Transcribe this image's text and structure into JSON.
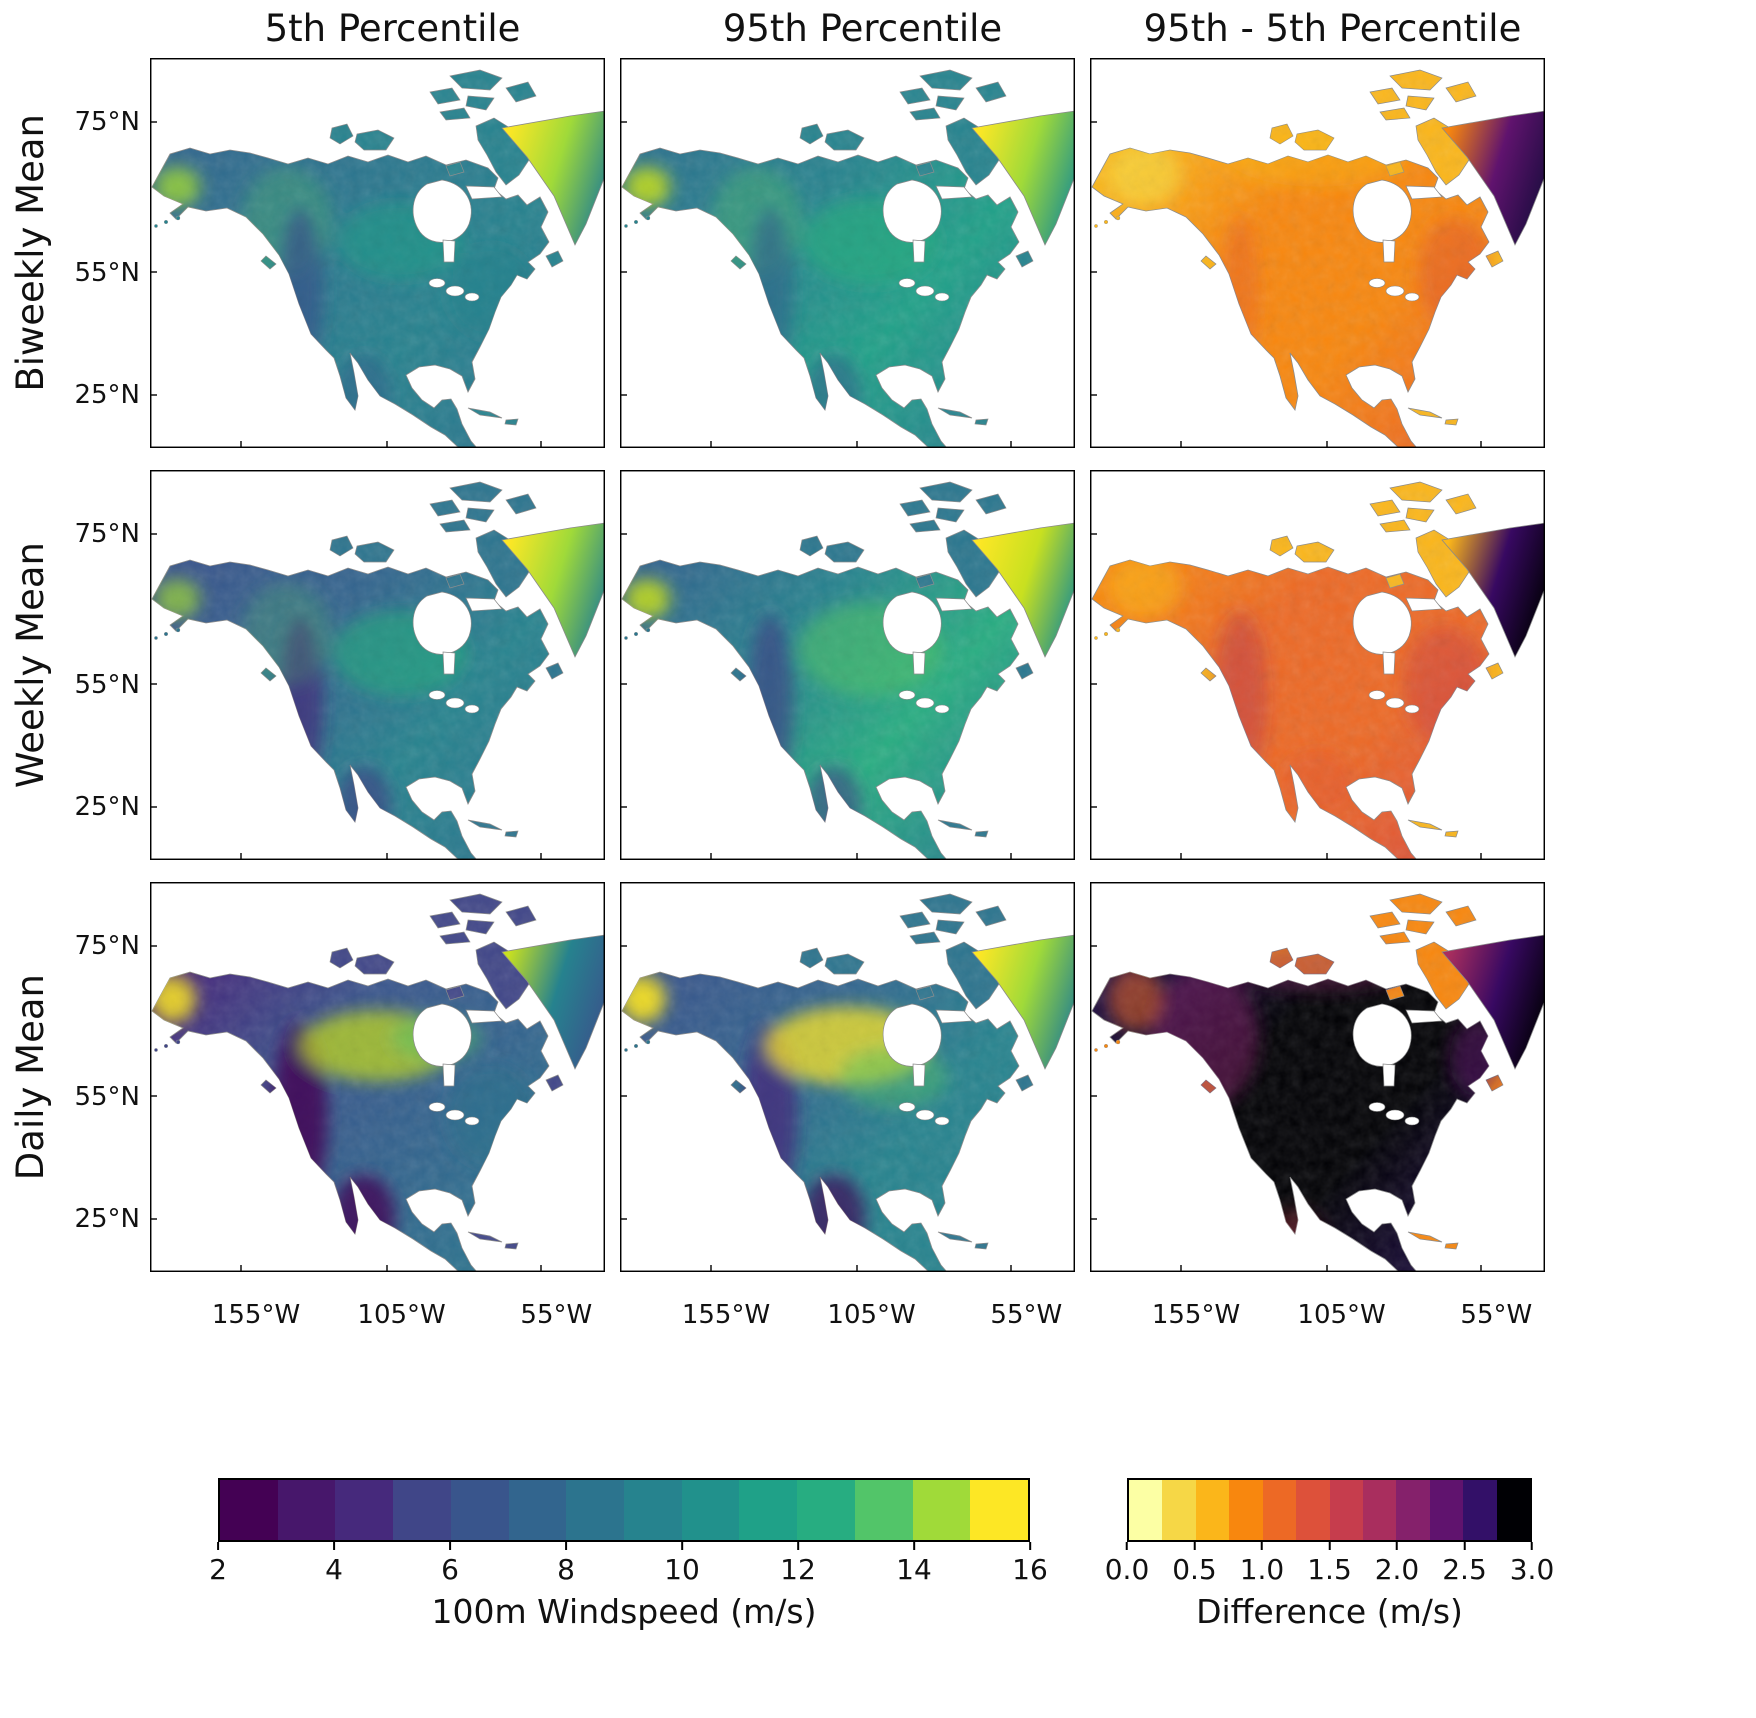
{
  "figure": {
    "col_headers": [
      "5th Percentile",
      "95th Percentile",
      "95th - 5th Percentile"
    ],
    "row_labels": [
      "Biweekly Mean",
      "Weekly Mean",
      "Daily Mean"
    ],
    "lat_ticks": [
      "75°N",
      "55°N",
      "25°N"
    ],
    "lon_ticks": [
      "155°W",
      "105°W",
      "55°W"
    ]
  },
  "colorbars": {
    "windspeed": {
      "label": "100m Windspeed (m/s)",
      "ticks": [
        "2",
        "4",
        "6",
        "8",
        "10",
        "12",
        "14",
        "16"
      ],
      "colors": [
        "#440154",
        "#47176b",
        "#46297c",
        "#404688",
        "#39558c",
        "#32658e",
        "#2c748e",
        "#26838e",
        "#21918c",
        "#1fa188",
        "#27ad81",
        "#52c569",
        "#a0da39",
        "#fde725"
      ]
    },
    "difference": {
      "label": "Difference (m/s)",
      "ticks": [
        "0.0",
        "0.5",
        "1.0",
        "1.5",
        "2.0",
        "2.5",
        "3.0"
      ],
      "colors": [
        "#fcffa4",
        "#f6d746",
        "#fbb61a",
        "#f8870e",
        "#ed6925",
        "#dd513a",
        "#c63d4d",
        "#a92e5e",
        "#85216b",
        "#60136e",
        "#331068",
        "#000004"
      ]
    }
  },
  "chart_data": {
    "type": "heatmap",
    "region": "North America",
    "panel_grid": {
      "columns": [
        "5th Percentile",
        "95th Percentile",
        "95th - 5th Percentile"
      ],
      "rows": [
        "Biweekly Mean",
        "Weekly Mean",
        "Daily Mean"
      ]
    },
    "x_axis": {
      "ticks": [
        "155°W",
        "105°W",
        "55°W"
      ]
    },
    "y_axis": {
      "ticks": [
        "75°N",
        "55°N",
        "25°N"
      ]
    },
    "colorbars": [
      {
        "label": "100m Windspeed (m/s)",
        "range": [
          2,
          16
        ],
        "tick_values": [
          2,
          4,
          6,
          8,
          10,
          12,
          14,
          16
        ],
        "palette": "viridis",
        "n_segments": 14
      },
      {
        "label": "Difference (m/s)",
        "range": [
          0.0,
          3.0
        ],
        "tick_values": [
          0.0,
          0.5,
          1.0,
          1.5,
          2.0,
          2.5,
          3.0
        ],
        "palette": "inferno_reversed",
        "n_segments": 12
      }
    ]
  },
  "render": {
    "panels": [
      {
        "id": "biweekly-5th",
        "stops": [
          "#31688e",
          "#2a768e",
          "#26828e",
          "#2a768e"
        ],
        "islands": "#26828e",
        "greenland": [
          "#fde725",
          "#a0da39",
          "#26828e"
        ],
        "accents": [
          [
            0.06,
            0.33,
            0.05,
            0.05,
            "#a0da39",
            0.8
          ],
          [
            0.3,
            0.42,
            0.1,
            0.14,
            "#52c569",
            0.3
          ],
          [
            0.33,
            0.6,
            0.05,
            0.22,
            "#39558c",
            0.7
          ],
          [
            0.55,
            0.47,
            0.14,
            0.1,
            "#1fa188",
            0.55
          ],
          [
            0.47,
            0.86,
            0.06,
            0.1,
            "#32658e",
            0.6
          ],
          [
            0.75,
            0.6,
            0.1,
            0.12,
            "#26838e",
            0.5
          ]
        ]
      },
      {
        "id": "biweekly-95th",
        "stops": [
          "#2c748e",
          "#26838e",
          "#1fa188",
          "#26838e"
        ],
        "islands": "#26838e",
        "greenland": [
          "#fde725",
          "#a0da39",
          "#21918c"
        ],
        "accents": [
          [
            0.06,
            0.33,
            0.05,
            0.05,
            "#c8e020",
            0.85
          ],
          [
            0.3,
            0.42,
            0.1,
            0.14,
            "#52c569",
            0.35
          ],
          [
            0.33,
            0.6,
            0.05,
            0.22,
            "#32658e",
            0.65
          ],
          [
            0.55,
            0.47,
            0.15,
            0.11,
            "#27ad81",
            0.7
          ],
          [
            0.47,
            0.86,
            0.06,
            0.1,
            "#32658e",
            0.6
          ]
        ]
      },
      {
        "id": "biweekly-diff",
        "stops": [
          "#fbb61a",
          "#f8870e",
          "#f8870e",
          "#ed6925"
        ],
        "islands": "#fbb61a",
        "greenland": [
          "#f8870e",
          "#60136e",
          "#1c0c3f"
        ],
        "accents": [
          [
            0.12,
            0.3,
            0.08,
            0.08,
            "#f6d746",
            0.7
          ],
          [
            0.5,
            0.25,
            0.2,
            0.08,
            "#fbb61a",
            0.5
          ],
          [
            0.8,
            0.55,
            0.08,
            0.14,
            "#dd513a",
            0.4
          ],
          [
            0.33,
            0.6,
            0.04,
            0.2,
            "#dd513a",
            0.3
          ]
        ]
      },
      {
        "id": "weekly-5th",
        "stops": [
          "#39558c",
          "#32658e",
          "#26838e",
          "#2a768e"
        ],
        "islands": "#2c748e",
        "greenland": [
          "#fde725",
          "#a0da39",
          "#26828e"
        ],
        "accents": [
          [
            0.06,
            0.33,
            0.05,
            0.05,
            "#a0da39",
            0.7
          ],
          [
            0.33,
            0.6,
            0.05,
            0.23,
            "#46297c",
            0.7
          ],
          [
            0.55,
            0.47,
            0.15,
            0.11,
            "#27ad81",
            0.6
          ],
          [
            0.47,
            0.86,
            0.06,
            0.1,
            "#404688",
            0.7
          ],
          [
            0.3,
            0.42,
            0.1,
            0.13,
            "#52c569",
            0.25
          ]
        ]
      },
      {
        "id": "weekly-95th",
        "stops": [
          "#32658e",
          "#26838e",
          "#27ad81",
          "#26838e"
        ],
        "islands": "#2a768e",
        "greenland": [
          "#fde725",
          "#c8e020",
          "#21918c"
        ],
        "accents": [
          [
            0.06,
            0.33,
            0.05,
            0.05,
            "#c8e020",
            0.85
          ],
          [
            0.33,
            0.6,
            0.05,
            0.23,
            "#404688",
            0.7
          ],
          [
            0.55,
            0.46,
            0.16,
            0.12,
            "#52c569",
            0.55
          ],
          [
            0.47,
            0.86,
            0.06,
            0.1,
            "#404688",
            0.6
          ]
        ]
      },
      {
        "id": "weekly-diff",
        "stops": [
          "#f8870e",
          "#ed6925",
          "#ed6925",
          "#dd513a"
        ],
        "islands": "#fbb61a",
        "greenland": [
          "#fbb61a",
          "#380962",
          "#000004"
        ],
        "accents": [
          [
            0.12,
            0.3,
            0.08,
            0.08,
            "#fbb61a",
            0.6
          ],
          [
            0.33,
            0.58,
            0.06,
            0.22,
            "#a92e5e",
            0.35
          ],
          [
            0.78,
            0.55,
            0.09,
            0.15,
            "#c63d4d",
            0.4
          ],
          [
            0.5,
            0.8,
            0.08,
            0.08,
            "#dd513a",
            0.3
          ]
        ]
      },
      {
        "id": "daily-5th",
        "stops": [
          "#46297c",
          "#39558c",
          "#32658e",
          "#2a768e"
        ],
        "islands": "#404688",
        "greenland": [
          "#c8e020",
          "#26828e",
          "#39558c"
        ],
        "accents": [
          [
            0.05,
            0.3,
            0.05,
            0.06,
            "#fde725",
            0.85
          ],
          [
            0.33,
            0.6,
            0.06,
            0.24,
            "#440154",
            0.8
          ],
          [
            0.5,
            0.42,
            0.17,
            0.09,
            "#c8e020",
            0.7
          ],
          [
            0.63,
            0.4,
            0.1,
            0.06,
            "#52c569",
            0.45
          ],
          [
            0.47,
            0.86,
            0.07,
            0.11,
            "#440154",
            0.75
          ],
          [
            0.75,
            0.6,
            0.1,
            0.13,
            "#2c748e",
            0.5
          ]
        ]
      },
      {
        "id": "daily-95th",
        "stops": [
          "#39558c",
          "#32658e",
          "#26838e",
          "#26838e"
        ],
        "islands": "#2c748e",
        "greenland": [
          "#fde725",
          "#a0da39",
          "#26828e"
        ],
        "accents": [
          [
            0.05,
            0.3,
            0.05,
            0.06,
            "#fde725",
            0.9
          ],
          [
            0.33,
            0.6,
            0.06,
            0.24,
            "#46297c",
            0.75
          ],
          [
            0.5,
            0.42,
            0.18,
            0.1,
            "#fde725",
            0.75
          ],
          [
            0.6,
            0.5,
            0.12,
            0.08,
            "#52c569",
            0.45
          ],
          [
            0.47,
            0.86,
            0.07,
            0.11,
            "#440154",
            0.65
          ]
        ]
      },
      {
        "id": "daily-diff",
        "stops": [
          "#1c0c3f",
          "#000004",
          "#000004",
          "#1c0c3f"
        ],
        "islands": "#f8870e",
        "greenland": [
          "#a92e5e",
          "#380962",
          "#000004"
        ],
        "accents": [
          [
            0.25,
            0.4,
            0.12,
            0.18,
            "#85216b",
            0.5
          ],
          [
            0.1,
            0.3,
            0.06,
            0.08,
            "#ed6925",
            0.55
          ],
          [
            0.5,
            0.22,
            0.2,
            0.06,
            "#85216b",
            0.4
          ],
          [
            0.85,
            0.45,
            0.06,
            0.1,
            "#60136e",
            0.5
          ],
          [
            0.45,
            0.9,
            0.06,
            0.06,
            "#c63d4d",
            0.35
          ]
        ]
      }
    ]
  }
}
